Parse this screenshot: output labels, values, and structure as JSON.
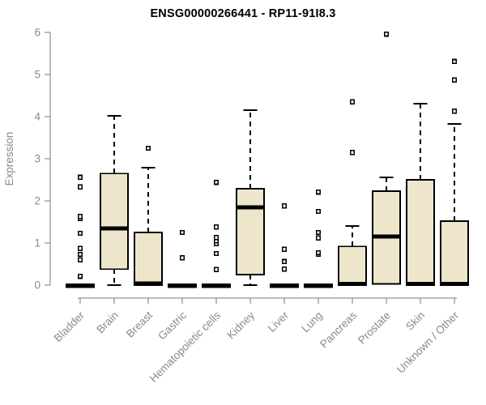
{
  "chart_data": {
    "type": "boxplot",
    "title": "ENSG00000266441 - RP11-91I8.3",
    "ylabel": "Expression",
    "xlabel": "",
    "ylim": [
      0,
      6
    ],
    "yticks": [
      0,
      1,
      2,
      3,
      4,
      5,
      6
    ],
    "grid": false,
    "legend": "none",
    "categories": [
      "Bladder",
      "Brain",
      "Breast",
      "Gastric",
      "Hematopoietic cells",
      "Kidney",
      "Liver",
      "Lung",
      "Pancreas",
      "Prostate",
      "Skin",
      "Unknown / Other"
    ],
    "series": [
      {
        "name": "Bladder",
        "whisker_low": 0,
        "q1": 0,
        "median": 0,
        "q3": 0,
        "whisker_high": 0,
        "outliers": [
          0.21,
          0.6,
          0.73,
          0.87,
          1.23,
          1.58,
          1.63,
          2.33,
          2.56
        ]
      },
      {
        "name": "Brain",
        "whisker_low": 0,
        "q1": 0.38,
        "median": 1.35,
        "q3": 2.65,
        "whisker_high": 4.02,
        "outliers": []
      },
      {
        "name": "Breast",
        "whisker_low": 0,
        "q1": 0,
        "median": 0.04,
        "q3": 1.25,
        "whisker_high": 2.79,
        "outliers": [
          3.25
        ]
      },
      {
        "name": "Gastric",
        "whisker_low": 0,
        "q1": 0,
        "median": 0,
        "q3": 0,
        "whisker_high": 0,
        "outliers": [
          0.65,
          1.25
        ]
      },
      {
        "name": "Hematopoietic cells",
        "whisker_low": 0,
        "q1": 0,
        "median": 0,
        "q3": 0,
        "whisker_high": 0,
        "outliers": [
          0.37,
          0.75,
          0.98,
          1.05,
          1.13,
          1.38,
          2.44
        ]
      },
      {
        "name": "Kidney",
        "whisker_low": 0,
        "q1": 0.25,
        "median": 1.85,
        "q3": 2.29,
        "whisker_high": 4.15,
        "outliers": []
      },
      {
        "name": "Liver",
        "whisker_low": 0,
        "q1": 0,
        "median": 0,
        "q3": 0,
        "whisker_high": 0,
        "outliers": [
          0.38,
          0.56,
          0.85,
          1.88
        ]
      },
      {
        "name": "Lung",
        "whisker_low": 0,
        "q1": 0,
        "median": 0,
        "q3": 0,
        "whisker_high": 0,
        "outliers": [
          0.73,
          0.77,
          1.12,
          1.25,
          1.75,
          2.21
        ]
      },
      {
        "name": "Pancreas",
        "whisker_low": 0,
        "q1": 0,
        "median": 0.03,
        "q3": 0.92,
        "whisker_high": 1.4,
        "outliers": [
          3.15,
          4.35
        ]
      },
      {
        "name": "Prostate",
        "whisker_low": 0.03,
        "q1": 0.03,
        "median": 1.15,
        "q3": 2.23,
        "whisker_high": 2.56,
        "outliers": [
          5.96
        ]
      },
      {
        "name": "Skin",
        "whisker_low": 0,
        "q1": 0,
        "median": 0.03,
        "q3": 2.5,
        "whisker_high": 4.31,
        "outliers": []
      },
      {
        "name": "Unknown / Other",
        "whisker_low": 0,
        "q1": 0,
        "median": 0.03,
        "q3": 1.52,
        "whisker_high": 3.83,
        "outliers": [
          4.13,
          4.87,
          5.31
        ]
      }
    ],
    "colors": {
      "box_fill": "#EDE6CB",
      "box_border": "#000000",
      "median": "#000000",
      "whisker": "#000000",
      "outlier": "#000000",
      "axis": "#7a7a7a",
      "label": "#8a8a8a",
      "title": "#000000",
      "background": "#FFFFFF"
    }
  }
}
